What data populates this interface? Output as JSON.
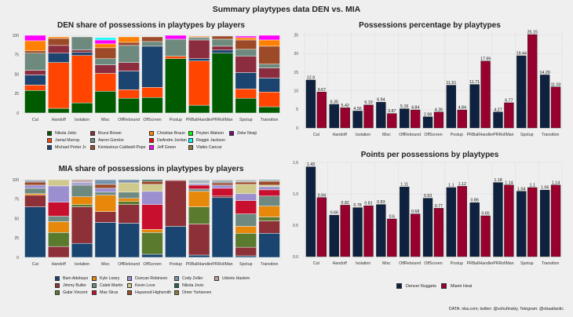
{
  "title": "Summary playtypes data DEN vs. MIA",
  "caption": "DATA: nba.com; twitter: @vshufinskiy, Telegram: @nbaatlantic",
  "categories": [
    "Cut",
    "Handoff",
    "Isolation",
    "Misc",
    "OffRebound",
    "OffScreen",
    "Postup",
    "PRBallHandler",
    "PRRollMan",
    "Spotup",
    "Transition"
  ],
  "chart_data": [
    {
      "type": "bar",
      "stacked": true,
      "title": "DEN share of possessions in playtypes by players",
      "xlabel": "",
      "ylabel": "",
      "ylim": [
        0,
        100
      ],
      "yticks": [
        0,
        25,
        50,
        75,
        100
      ],
      "categories": [
        "Cut",
        "Handoff",
        "Isolation",
        "Misc",
        "OffRebound",
        "OffScreen",
        "Postup",
        "PRBallHandler",
        "PRRollMan",
        "Spotup",
        "Transition"
      ],
      "series": [
        {
          "name": "Nikola Jokic",
          "color": "#005a00",
          "values": [
            29,
            6,
            13,
            28,
            19,
            20,
            70,
            10,
            77,
            19,
            8
          ]
        },
        {
          "name": "Jamal Murray",
          "color": "#ff4500",
          "values": [
            7,
            59,
            61,
            23,
            11,
            13,
            3,
            57,
            0,
            12,
            19
          ]
        },
        {
          "name": "Michael Porter Jr.",
          "color": "#1c4470",
          "values": [
            13,
            12,
            4,
            0,
            24,
            53,
            0,
            3,
            4,
            21,
            18
          ]
        },
        {
          "name": "Bruce Brown",
          "color": "#8b2d3e",
          "values": [
            6,
            10,
            3,
            11,
            11,
            0,
            0,
            24,
            5,
            21,
            13
          ]
        },
        {
          "name": "Aaron Gordon",
          "color": "#6e8a7e",
          "values": [
            22,
            0,
            17,
            8,
            22,
            6,
            22,
            3,
            9,
            9,
            5
          ]
        },
        {
          "name": "Kentavious Caldwell-Pope",
          "color": "#9c4a28",
          "values": [
            3,
            9,
            0,
            14,
            4,
            6,
            0,
            1,
            4,
            12,
            23
          ]
        },
        {
          "name": "Christian Braun",
          "color": "#ff8000",
          "values": [
            13,
            2,
            0,
            5,
            7,
            0,
            0,
            1,
            0,
            3,
            8
          ]
        },
        {
          "name": "DeAndre Jordan",
          "color": "#ff0000",
          "values": [
            0,
            0,
            0,
            0,
            0,
            0,
            0,
            0,
            0,
            0,
            0
          ]
        },
        {
          "name": "Jeff Green",
          "color": "#ff00ff",
          "values": [
            7,
            0,
            0,
            5,
            0,
            0,
            5,
            0,
            0,
            2,
            6
          ]
        },
        {
          "name": "Peyton Watson",
          "color": "#00ff00",
          "values": [
            0,
            0,
            0,
            0,
            0,
            0,
            0,
            0,
            0,
            0,
            0
          ]
        },
        {
          "name": "Reggie Jackson",
          "color": "#00ffff",
          "values": [
            0,
            0,
            0,
            3,
            0,
            0,
            0,
            0,
            0,
            0,
            0
          ]
        },
        {
          "name": "Vlatko Cancar",
          "color": "#8e7b3e",
          "values": [
            0,
            0,
            0,
            0,
            0,
            0,
            0,
            0,
            0,
            0,
            0
          ]
        },
        {
          "name": "Zeke Nnaji",
          "color": "#7a0a7a",
          "values": [
            0,
            0,
            0,
            0,
            0,
            0,
            0,
            0,
            0,
            0,
            0
          ]
        }
      ]
    },
    {
      "type": "bar",
      "stacked": true,
      "title": "MIA share of possessions in playtypes by players",
      "xlabel": "",
      "ylabel": "",
      "ylim": [
        0,
        100
      ],
      "yticks": [
        0,
        25,
        50,
        75,
        100
      ],
      "categories": [
        "Cut",
        "Handoff",
        "Isolation",
        "Misc",
        "OffRebound",
        "OffScreen",
        "Postup",
        "PRBallHandler",
        "PRRollMan",
        "Spotup",
        "Transition"
      ],
      "series": [
        {
          "name": "Bam Adebayo",
          "color": "#1a4570",
          "values": [
            65,
            0,
            18,
            45,
            44,
            4,
            40,
            3,
            77,
            2,
            31
          ]
        },
        {
          "name": "Jimmy Butler",
          "color": "#8e3038",
          "values": [
            15,
            14,
            47,
            14,
            24,
            0,
            59,
            40,
            2,
            11,
            16
          ]
        },
        {
          "name": "Gabe Vincent",
          "color": "#5a7a2e",
          "values": [
            0,
            18,
            3,
            0,
            4,
            28,
            0,
            22,
            0,
            18,
            5
          ]
        },
        {
          "name": "Kyle Lowry",
          "color": "#e8880a",
          "values": [
            2,
            14,
            10,
            21,
            4,
            4,
            0,
            20,
            0,
            9,
            14
          ]
        },
        {
          "name": "Caleb Martin",
          "color": "#6e8a80",
          "values": [
            7,
            7,
            15,
            4,
            8,
            0,
            0,
            3,
            0,
            16,
            13
          ]
        },
        {
          "name": "Max Strus",
          "color": "#c8102e",
          "values": [
            0,
            18,
            0,
            0,
            0,
            32,
            0,
            5,
            10,
            17,
            8
          ]
        },
        {
          "name": "Duncan Robinson",
          "color": "#9b8fd0",
          "values": [
            4,
            21,
            3,
            5,
            0,
            17,
            0,
            2,
            4,
            9,
            4
          ]
        },
        {
          "name": "Kevin Love",
          "color": "#cfc98c",
          "values": [
            0,
            8,
            0,
            0,
            12,
            9,
            0,
            1,
            0,
            12,
            2
          ]
        },
        {
          "name": "Haywood Highsmith",
          "color": "#9c4a28",
          "values": [
            4,
            0,
            0,
            5,
            0,
            4,
            0,
            0,
            3,
            3,
            5
          ]
        },
        {
          "name": "Cody Zeller",
          "color": "#7a93ac",
          "values": [
            2,
            0,
            1,
            6,
            4,
            0,
            0,
            2,
            2,
            1,
            1
          ]
        },
        {
          "name": "Nikola Jovic",
          "color": "#24665a",
          "values": [
            0,
            0,
            0,
            0,
            0,
            2,
            0,
            1,
            1,
            1,
            1
          ]
        },
        {
          "name": "Omer Yurtseven",
          "color": "#8e7b3e",
          "values": [
            0,
            0,
            0,
            0,
            0,
            0,
            0,
            0,
            0,
            0,
            0
          ]
        },
        {
          "name": "Udonis Haslem",
          "color": "#c0a09a",
          "values": [
            1,
            0,
            3,
            0,
            0,
            0,
            1,
            1,
            1,
            1,
            0
          ]
        }
      ]
    },
    {
      "type": "bar",
      "grouped": true,
      "title": "Possessions percentage by playtypes",
      "xlabel": "",
      "ylabel": "",
      "ylim": [
        0,
        26
      ],
      "yticks": [
        0,
        5,
        10,
        15,
        20,
        25
      ],
      "categories": [
        "Cut",
        "Handoff",
        "Isolation",
        "Misc",
        "OffRebound",
        "OffScreen",
        "Postup",
        "PRBallHandler",
        "PRRollMan",
        "Spotup",
        "Transition"
      ],
      "series": [
        {
          "name": "Denver Nuggets",
          "color": "#0e2240",
          "values": [
            12.9,
            6.35,
            4.56,
            6.94,
            5.16,
            2.98,
            11.51,
            11.71,
            4.27,
            19.44,
            14.29
          ],
          "labels": [
            "12.9",
            "6.35",
            "4.56",
            "6.94",
            "5.16",
            "2.98",
            "11.51",
            "11.71",
            "4.27",
            "19.44",
            "14.29"
          ]
        },
        {
          "name": "Miami Heat",
          "color": "#98002e",
          "values": [
            9.67,
            5.42,
            6.19,
            3.87,
            4.84,
            4.26,
            4.84,
            17.99,
            6.77,
            25.15,
            11.03
          ],
          "labels": [
            "9.67",
            "5.42",
            "6.19",
            "3.87",
            "4.84",
            "4.26",
            "4.84",
            "17.99",
            "6.77",
            "25.15",
            "11.03"
          ]
        }
      ]
    },
    {
      "type": "bar",
      "grouped": true,
      "title": "Points per possessions by playtypes",
      "xlabel": "",
      "ylabel": "",
      "ylim": [
        0,
        1.5
      ],
      "yticks": [
        "0.0",
        "0.5",
        "1.0",
        "1.5"
      ],
      "categories": [
        "Cut",
        "Handoff",
        "Isolation",
        "Misc",
        "OffRebound",
        "OffScreen",
        "Postup",
        "PRBallHandler",
        "PRRollMan",
        "Spotup",
        "Transition"
      ],
      "series": [
        {
          "name": "Denver Nuggets",
          "color": "#0e2240",
          "values": [
            1.43,
            0.66,
            0.78,
            0.83,
            1.11,
            0.93,
            1.1,
            0.86,
            1.18,
            1.04,
            1.06
          ],
          "labels": [
            "1.43",
            "0.66",
            "0.78",
            "0.83",
            "1.11",
            "0.93",
            "1.1",
            "0.86",
            "1.18",
            "1.04",
            "1.06"
          ]
        },
        {
          "name": "Miami Heat",
          "color": "#98002e",
          "values": [
            0.94,
            0.82,
            0.81,
            0.6,
            0.68,
            0.77,
            1.12,
            0.65,
            1.14,
            1.1,
            1.14
          ],
          "labels": [
            "0.94",
            "0.82",
            "0.81",
            "0.6",
            "0.68",
            "0.77",
            "1.12",
            "0.65",
            "1.14",
            "1.1",
            "1.14"
          ]
        }
      ],
      "legend": "bottom"
    }
  ]
}
